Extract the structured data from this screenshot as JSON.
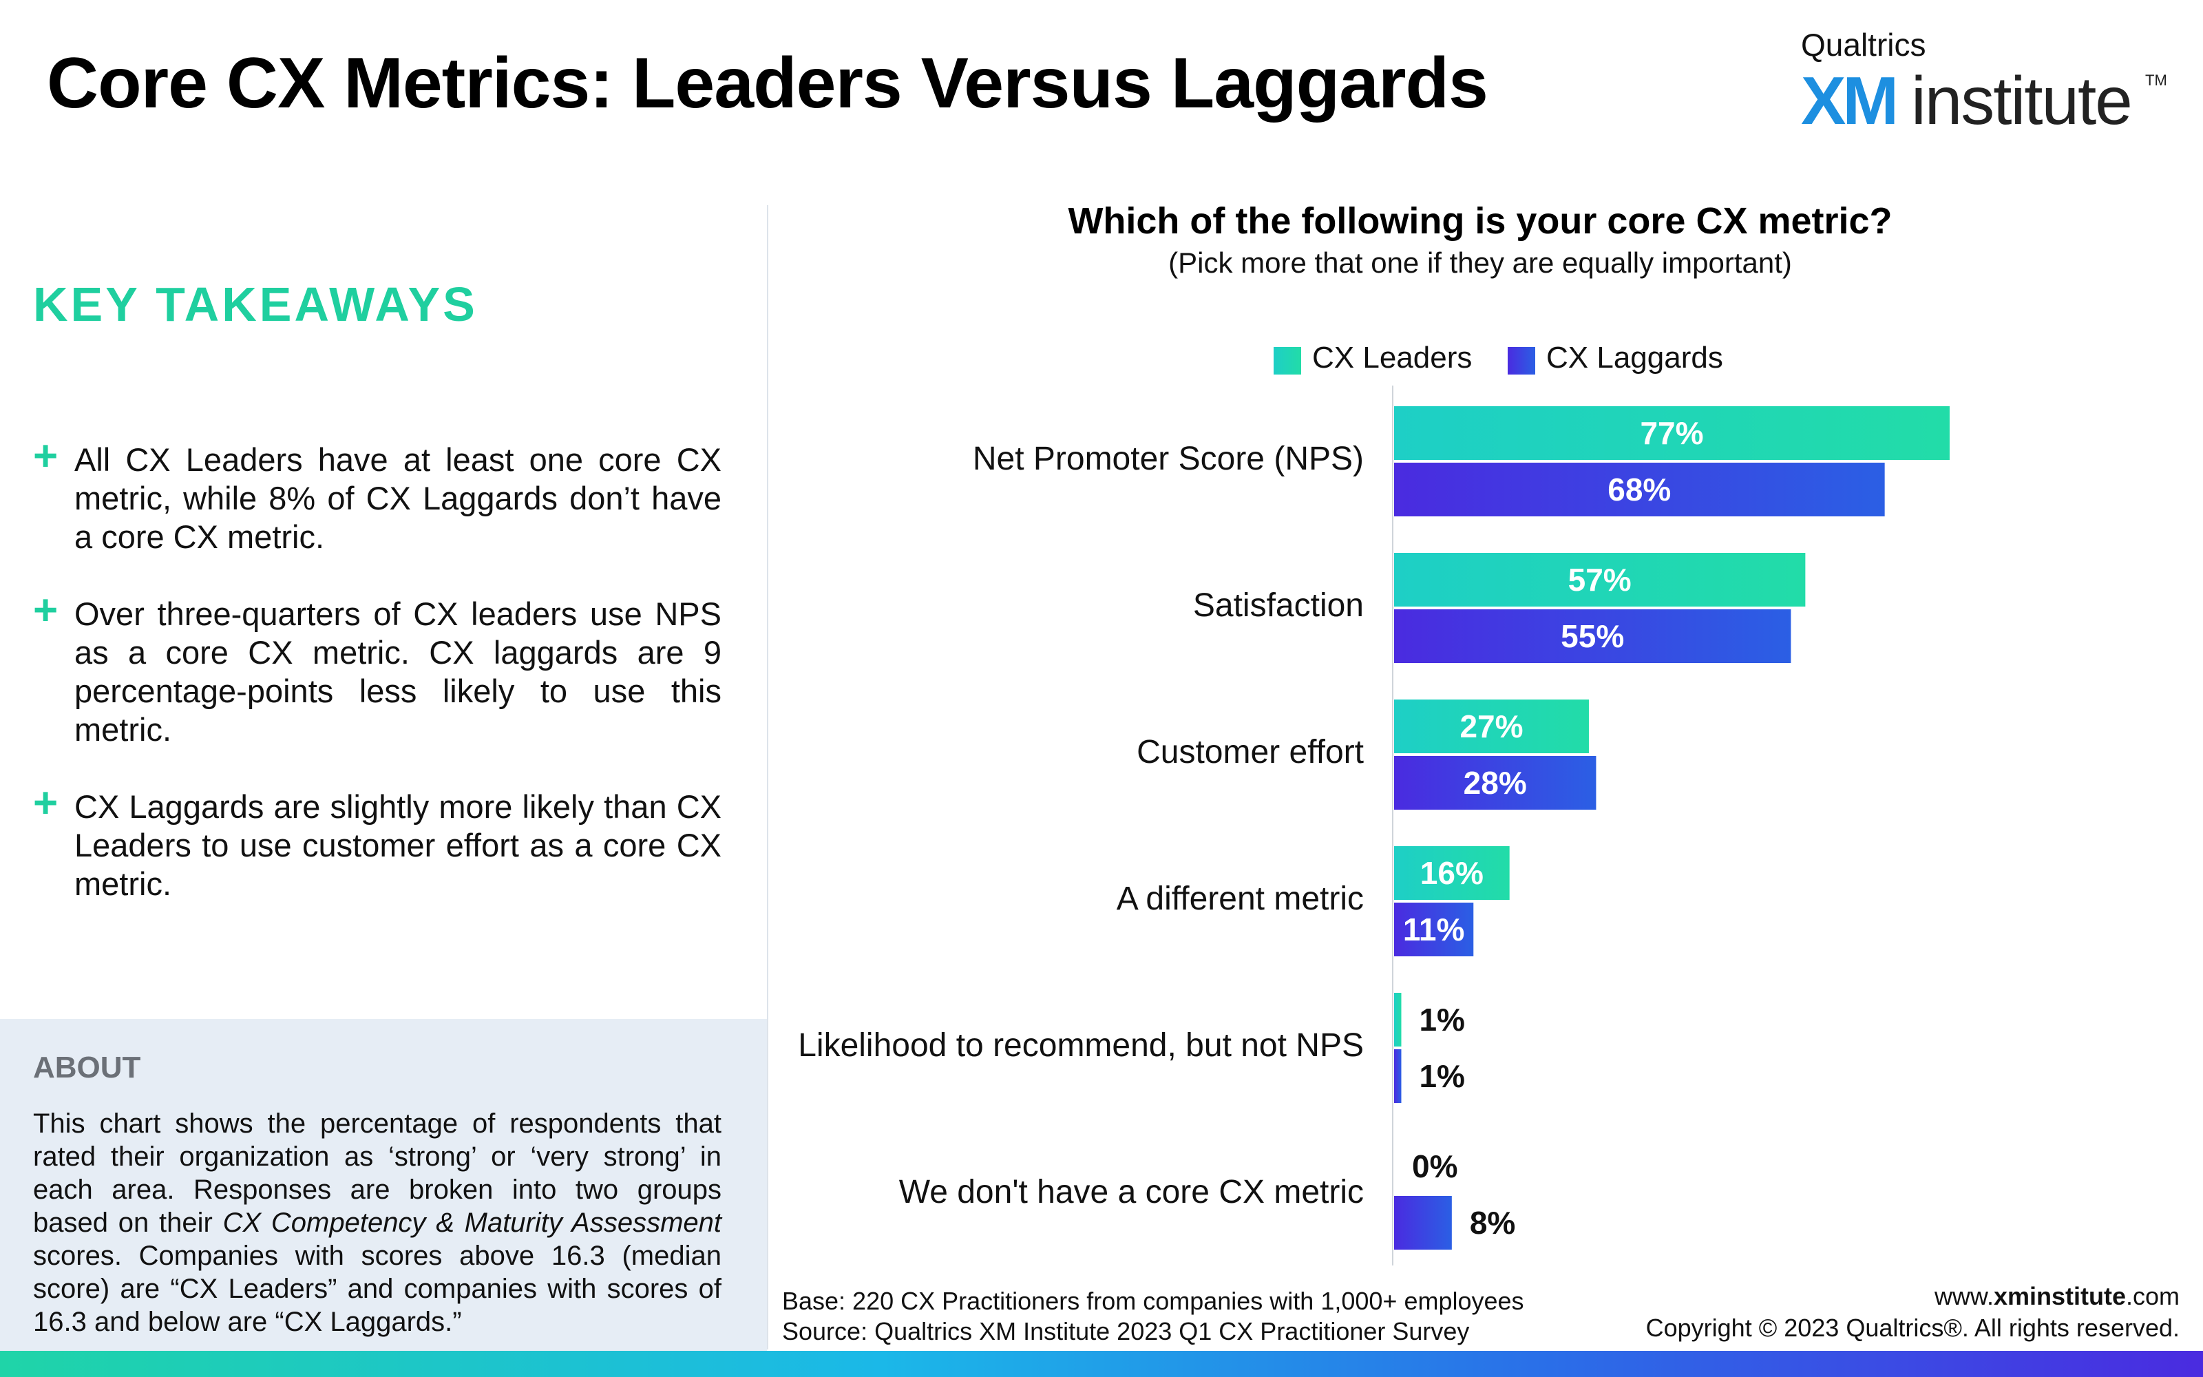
{
  "header": {
    "title": "Core CX Metrics: Leaders Versus Laggards"
  },
  "logo": {
    "brand": "Qualtrics",
    "xm": "XM",
    "word": "institute",
    "tm": "TM"
  },
  "key_takeaways": {
    "heading": "KEY TAKEAWAYS",
    "items": [
      "All CX Leaders have at least one core CX metric, while 8% of CX Laggards don’t have a core CX metric.",
      "Over three-quarters of CX leaders use NPS as a core CX metric. CX laggards are 9 percentage-points less likely to use this metric.",
      "CX Laggards are slightly more likely than CX Leaders to use customer effort as a core CX metric."
    ],
    "bullet_symbol": "+"
  },
  "about": {
    "heading": "ABOUT",
    "text_before": "This chart shows the percentage of respondents that rated their organization as ‘strong’ or ‘very strong’ in each area. Responses are broken into two groups based on their ",
    "text_italic": "CX Competency & Maturity Assessment",
    "text_after": " scores. Companies with scores above 16.3 (median score) are “CX Leaders” and companies with scores of 16.3 and below are “CX Laggards.”"
  },
  "chart_data": {
    "type": "bar",
    "orientation": "horizontal",
    "title": "Which of the following is your core CX metric?",
    "subtitle": "(Pick more that one if they are equally important)",
    "categories": [
      "Net Promoter Score (NPS)",
      "Satisfaction",
      "Customer effort",
      "A different metric",
      "Likelihood to recommend, but not NPS",
      "We don't have a core CX metric"
    ],
    "series": [
      {
        "name": "CX Leaders",
        "values": [
          77,
          57,
          27,
          16,
          1,
          0
        ],
        "color_start": "#1ecfc6",
        "color_end": "#22dca8"
      },
      {
        "name": "CX Laggards",
        "values": [
          68,
          55,
          28,
          11,
          1,
          8
        ],
        "color_start": "#4a2be0",
        "color_end": "#2b5fe4"
      }
    ],
    "value_suffix": "%",
    "xlim": [
      0,
      100
    ],
    "legend_position": "top",
    "grid": false,
    "data_labels": true
  },
  "footnotes": {
    "base": "Base: 220 CX Practitioners from companies with 1,000+ employees",
    "source": "Source: Qualtrics XM Institute 2023 Q1 CX Practitioner Survey"
  },
  "footer": {
    "url_prefix": "www.",
    "url_bold": "xminstitute",
    "url_suffix": ".com",
    "copyright": "Copyright © 2023 Qualtrics®. All rights reserved."
  },
  "colors": {
    "accent_green": "#1fcf9f",
    "leaders": "#1ecfc6",
    "laggards": "#4a2be0",
    "about_bg": "#e6edf5"
  }
}
